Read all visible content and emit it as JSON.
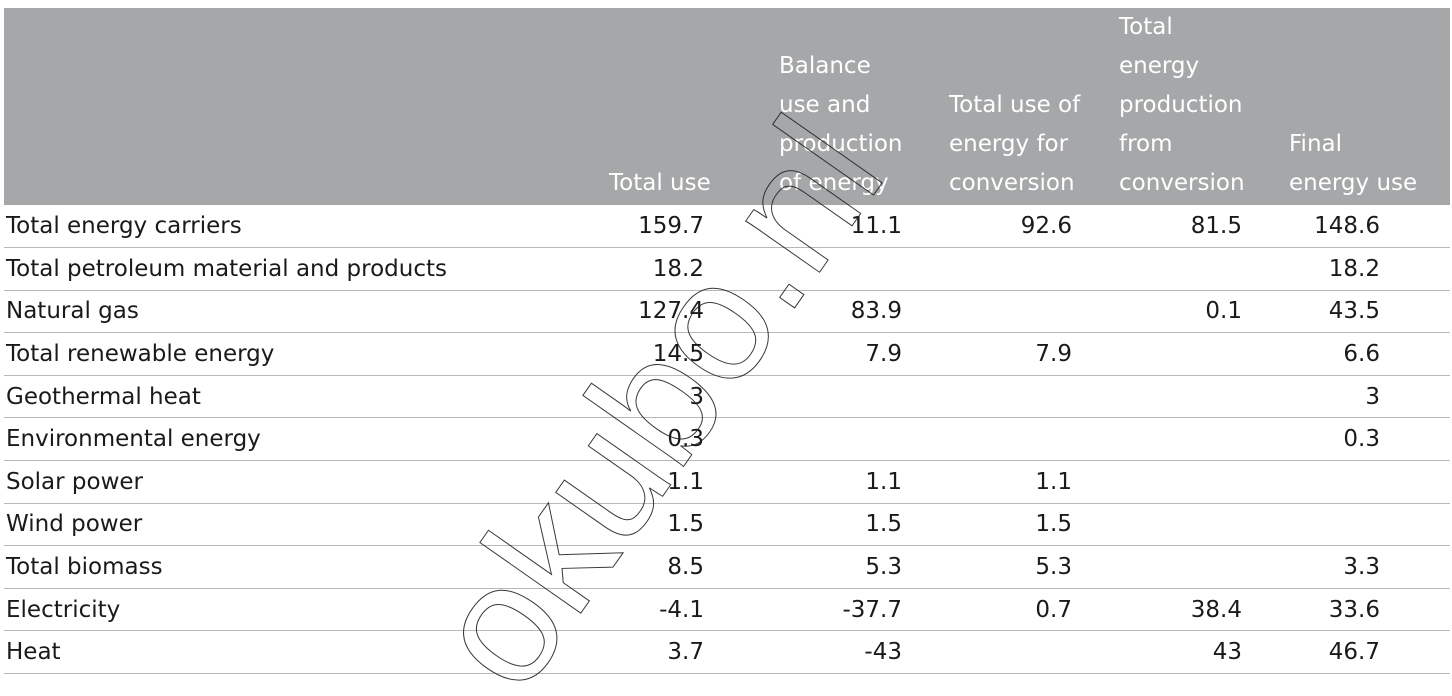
{
  "chart_data": {
    "type": "table",
    "columns": [
      "",
      "Total use",
      "Balance\nuse and\nproduction\nof energy",
      "Total use of\nenergy for\nconversion",
      "Total\nenergy\nproduction\nfrom\nconversion",
      "Final\nenergy use"
    ],
    "rows": [
      [
        "Total energy carriers",
        "159.7",
        "11.1",
        "92.6",
        "81.5",
        "148.6"
      ],
      [
        "Total petroleum material and products",
        "18.2",
        "",
        "",
        "",
        "18.2"
      ],
      [
        "Natural gas",
        "127.4",
        "83.9",
        "",
        "0.1",
        "43.5"
      ],
      [
        "Total renewable energy",
        "14.5",
        "7.9",
        "7.9",
        "",
        "6.6"
      ],
      [
        "Geothermal heat",
        "3",
        "",
        "",
        "",
        "3"
      ],
      [
        "Environmental energy",
        "0.3",
        "",
        "",
        "",
        "0.3"
      ],
      [
        "Solar power",
        "1.1",
        "1.1",
        "1.1",
        "",
        ""
      ],
      [
        "Wind power",
        "1.5",
        "1.5",
        "1.5",
        "",
        ""
      ],
      [
        "Total biomass",
        "8.5",
        "5.3",
        "5.3",
        "",
        "3.3"
      ],
      [
        "Electricity",
        "-4.1",
        "-37.7",
        "0.7",
        "38.4",
        "33.6"
      ],
      [
        "Heat",
        "3.7",
        "-43",
        "",
        "43",
        "46.7"
      ]
    ]
  },
  "watermark": "okubo.nl",
  "colors": {
    "header_bg": "#a5a7a8",
    "header_text": "#ffffff",
    "rule": "#b8b8b8",
    "text": "#1a1a1a"
  }
}
